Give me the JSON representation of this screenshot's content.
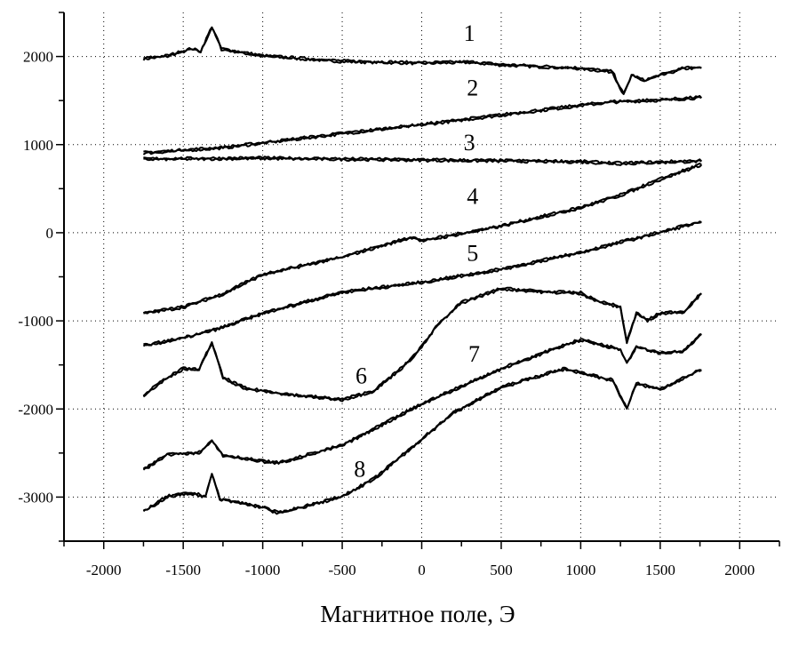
{
  "chart_data": {
    "type": "line",
    "title": "",
    "xlabel": "Магнитное поле, Э",
    "ylabel": "",
    "xlim": [
      -2250,
      2250
    ],
    "ylim": [
      -3500,
      2500
    ],
    "xticks": [
      -2000,
      -1500,
      -1000,
      -500,
      0,
      500,
      1000,
      1500,
      2000
    ],
    "yticks": [
      -3000,
      -2000,
      -1000,
      0,
      1000,
      2000
    ],
    "grid": "dotted, at major ticks",
    "legend": "none",
    "line_color": "#000000",
    "series": [
      {
        "label": "1",
        "label_at": [
          300,
          2270
        ],
        "points": [
          [
            -1750,
            1970
          ],
          [
            -1600,
            2000
          ],
          [
            -1450,
            2080
          ],
          [
            -1390,
            2050
          ],
          [
            -1320,
            2330
          ],
          [
            -1260,
            2080
          ],
          [
            -1000,
            2000
          ],
          [
            -500,
            1940
          ],
          [
            0,
            1920
          ],
          [
            300,
            1930
          ],
          [
            500,
            1900
          ],
          [
            1000,
            1860
          ],
          [
            1200,
            1820
          ],
          [
            1270,
            1560
          ],
          [
            1320,
            1780
          ],
          [
            1400,
            1720
          ],
          [
            1500,
            1780
          ],
          [
            1650,
            1860
          ],
          [
            1760,
            1870
          ]
        ]
      },
      {
        "label": "2",
        "label_at": [
          320,
          1650
        ],
        "points": [
          [
            -1750,
            900
          ],
          [
            -1250,
            960
          ],
          [
            -500,
            1120
          ],
          [
            0,
            1220
          ],
          [
            500,
            1330
          ],
          [
            1000,
            1440
          ],
          [
            1200,
            1480
          ],
          [
            1500,
            1500
          ],
          [
            1760,
            1530
          ]
        ]
      },
      {
        "label": "3",
        "label_at": [
          300,
          1030
        ],
        "points": [
          [
            -1750,
            830
          ],
          [
            -1000,
            840
          ],
          [
            0,
            820
          ],
          [
            1000,
            800
          ],
          [
            1250,
            780
          ],
          [
            1760,
            810
          ]
        ]
      },
      {
        "label": "4",
        "label_at": [
          320,
          420
        ],
        "points": [
          [
            -1750,
            -920
          ],
          [
            -1500,
            -850
          ],
          [
            -1250,
            -700
          ],
          [
            -1000,
            -480
          ],
          [
            -500,
            -280
          ],
          [
            -50,
            -50
          ],
          [
            0,
            -100
          ],
          [
            500,
            70
          ],
          [
            1000,
            280
          ],
          [
            1250,
            420
          ],
          [
            1500,
            600
          ],
          [
            1760,
            770
          ]
        ]
      },
      {
        "label": "5",
        "label_at": [
          320,
          -230
        ],
        "points": [
          [
            -1750,
            -1290
          ],
          [
            -1500,
            -1200
          ],
          [
            -1250,
            -1080
          ],
          [
            -1000,
            -920
          ],
          [
            -500,
            -680
          ],
          [
            0,
            -570
          ],
          [
            500,
            -420
          ],
          [
            1000,
            -230
          ],
          [
            1500,
            0
          ],
          [
            1760,
            120
          ]
        ]
      },
      {
        "label": "6",
        "label_at": [
          -380,
          -1620
        ],
        "points": [
          [
            -1750,
            -1850
          ],
          [
            -1600,
            -1650
          ],
          [
            -1500,
            -1550
          ],
          [
            -1400,
            -1560
          ],
          [
            -1320,
            -1250
          ],
          [
            -1250,
            -1650
          ],
          [
            -1100,
            -1780
          ],
          [
            -1000,
            -1800
          ],
          [
            -800,
            -1850
          ],
          [
            -500,
            -1900
          ],
          [
            -300,
            -1800
          ],
          [
            -100,
            -1500
          ],
          [
            0,
            -1300
          ],
          [
            100,
            -1050
          ],
          [
            250,
            -800
          ],
          [
            500,
            -640
          ],
          [
            800,
            -680
          ],
          [
            1000,
            -690
          ],
          [
            1100,
            -780
          ],
          [
            1250,
            -850
          ],
          [
            1290,
            -1250
          ],
          [
            1350,
            -920
          ],
          [
            1420,
            -1000
          ],
          [
            1500,
            -920
          ],
          [
            1650,
            -900
          ],
          [
            1760,
            -690
          ]
        ]
      },
      {
        "label": "7",
        "label_at": [
          330,
          -1370
        ],
        "points": [
          [
            -1750,
            -2700
          ],
          [
            -1600,
            -2520
          ],
          [
            -1400,
            -2500
          ],
          [
            -1320,
            -2370
          ],
          [
            -1250,
            -2530
          ],
          [
            -1000,
            -2600
          ],
          [
            -900,
            -2620
          ],
          [
            -500,
            -2420
          ],
          [
            0,
            -1950
          ],
          [
            500,
            -1550
          ],
          [
            900,
            -1280
          ],
          [
            1000,
            -1220
          ],
          [
            1250,
            -1330
          ],
          [
            1290,
            -1480
          ],
          [
            1350,
            -1300
          ],
          [
            1500,
            -1370
          ],
          [
            1650,
            -1350
          ],
          [
            1760,
            -1150
          ]
        ]
      },
      {
        "label": "8",
        "label_at": [
          -390,
          -2680
        ],
        "points": [
          [
            -1750,
            -3170
          ],
          [
            -1600,
            -3000
          ],
          [
            -1450,
            -2960
          ],
          [
            -1360,
            -3000
          ],
          [
            -1320,
            -2740
          ],
          [
            -1270,
            -3030
          ],
          [
            -1000,
            -3120
          ],
          [
            -900,
            -3190
          ],
          [
            -500,
            -3000
          ],
          [
            -300,
            -2800
          ],
          [
            0,
            -2350
          ],
          [
            200,
            -2050
          ],
          [
            500,
            -1760
          ],
          [
            800,
            -1600
          ],
          [
            900,
            -1550
          ],
          [
            1200,
            -1680
          ],
          [
            1290,
            -2000
          ],
          [
            1350,
            -1720
          ],
          [
            1500,
            -1780
          ],
          [
            1760,
            -1560
          ]
        ]
      }
    ]
  }
}
